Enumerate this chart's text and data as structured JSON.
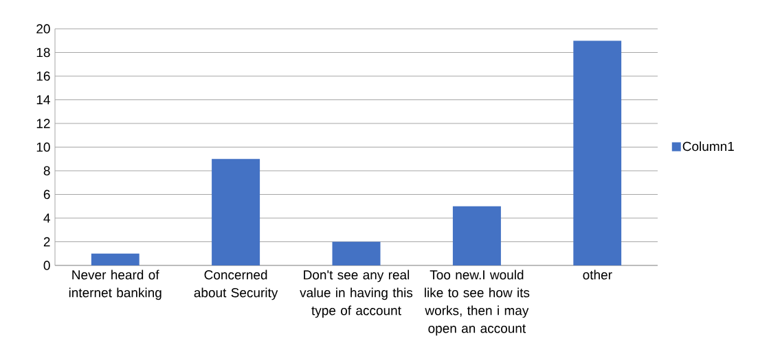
{
  "chart_data": {
    "type": "bar",
    "categories": [
      "Never heard of internet banking",
      "Concerned about Security",
      "Don't see any real value in having this type of account",
      "Too new.I  would like to see how its works, then i may open an account",
      "other"
    ],
    "series": [
      {
        "name": "Column1",
        "color": "#4472c4",
        "values": [
          1,
          9,
          2,
          5,
          19
        ]
      }
    ],
    "ylim": [
      0,
      20
    ],
    "yticks": [
      0,
      2,
      4,
      6,
      8,
      10,
      12,
      14,
      16,
      18,
      20
    ],
    "grid": "y",
    "legend": "right"
  }
}
